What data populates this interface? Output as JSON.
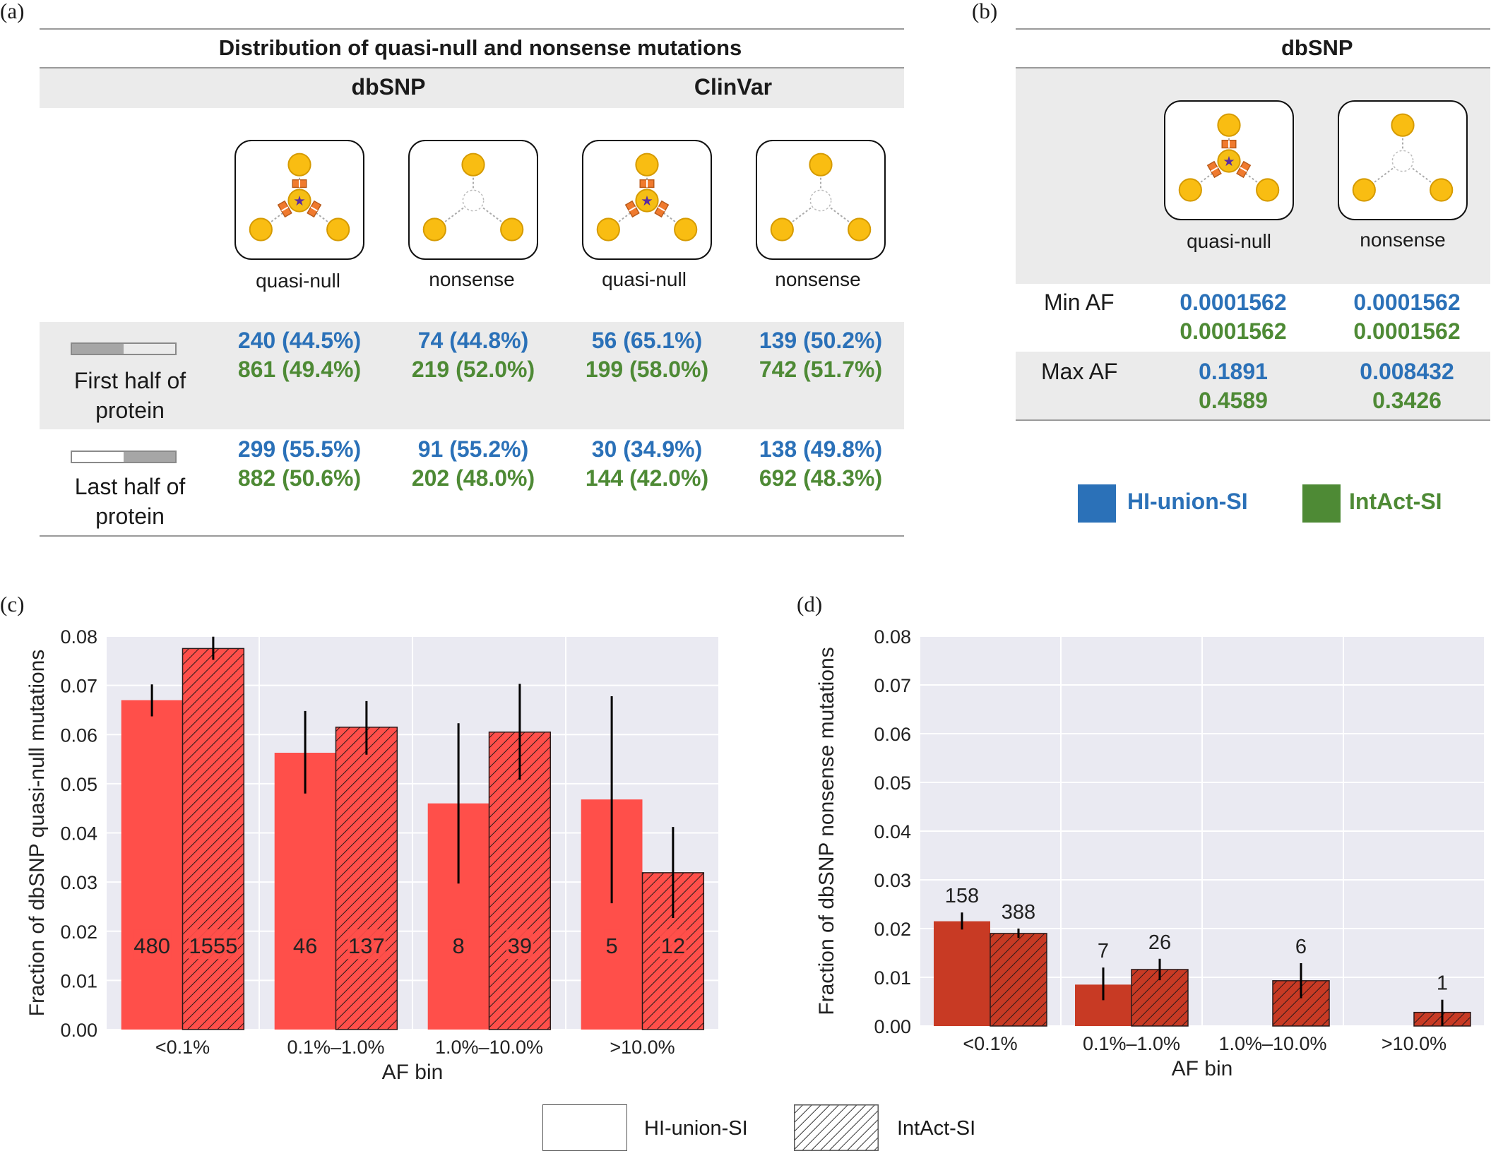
{
  "panel_labels": {
    "a": "(a)",
    "b": "(b)",
    "c": "(c)",
    "d": "(d)"
  },
  "panel_a": {
    "title": "Distribution of quasi-null and nonsense mutations",
    "groups": [
      "dbSNP",
      "ClinVar"
    ],
    "icon_labels": [
      "quasi-null",
      "nonsense",
      "quasi-null",
      "nonsense"
    ],
    "rows": [
      {
        "label_line1": "First half of",
        "label_line2": "protein",
        "blue": [
          "240 (44.5%)",
          "74 (44.8%)",
          "56 (65.1%)",
          "139 (50.2%)"
        ],
        "green": [
          "861 (49.4%)",
          "219 (52.0%)",
          "199 (58.0%)",
          "742 (51.7%)"
        ]
      },
      {
        "label_line1": "Last half of",
        "label_line2": "protein",
        "blue": [
          "299 (55.5%)",
          "91 (55.2%)",
          "30 (34.9%)",
          "138 (49.8%)"
        ],
        "green": [
          "882 (50.6%)",
          "202 (48.0%)",
          "144 (42.0%)",
          "692 (48.3%)"
        ]
      }
    ]
  },
  "panel_b": {
    "title": "dbSNP",
    "icon_labels": [
      "quasi-null",
      "nonsense"
    ],
    "rows": [
      {
        "label": "Min AF",
        "blue": [
          "0.0001562",
          "0.0001562"
        ],
        "green": [
          "0.0001562",
          "0.0001562"
        ]
      },
      {
        "label": "Max AF",
        "blue": [
          "0.1891",
          "0.008432"
        ],
        "green": [
          "0.4589",
          "0.3426"
        ]
      }
    ],
    "legend": [
      {
        "label": "HI-union-SI",
        "color": "#2b71b8"
      },
      {
        "label": "IntAct-SI",
        "color": "#4e8a35"
      }
    ]
  },
  "colors": {
    "blue": "#2b71b8",
    "green": "#4e8a35",
    "bar_c": "#ff4f4a",
    "bar_d": "#c83a24",
    "plot_bg": "#eaeaf2"
  },
  "bottom_legend": [
    {
      "label": "HI-union-SI",
      "pattern": "solid"
    },
    {
      "label": "IntAct-SI",
      "pattern": "hatched"
    }
  ],
  "chart_data": [
    {
      "type": "bar",
      "panel": "c",
      "categories": [
        "<0.1%",
        "0.1%–1.0%",
        "1.0%–10.0%",
        ">10.0%"
      ],
      "xlabel": "AF bin",
      "ylabel": "Fraction of dbSNP quasi-null mutations",
      "ylim": [
        0,
        0.08
      ],
      "yticks": [
        "0.00",
        "0.01",
        "0.02",
        "0.03",
        "0.04",
        "0.05",
        "0.06",
        "0.07",
        "0.08"
      ],
      "grid": true,
      "count_label_position": "inside",
      "series": [
        {
          "name": "HI-union-SI",
          "values": [
            0.067,
            0.0563,
            0.046,
            0.0468
          ],
          "err_low": [
            0.0637,
            0.048,
            0.0297,
            0.0257
          ],
          "err_high": [
            0.0702,
            0.0648,
            0.0623,
            0.0678
          ],
          "counts": [
            "480",
            "46",
            "8",
            "5"
          ]
        },
        {
          "name": "IntAct-SI",
          "values": [
            0.0775,
            0.0615,
            0.0605,
            0.0319
          ],
          "err_low": [
            0.0752,
            0.0559,
            0.0508,
            0.0227
          ],
          "err_high": [
            0.0799,
            0.0668,
            0.0703,
            0.0412
          ],
          "counts": [
            "1555",
            "137",
            "39",
            "12"
          ]
        }
      ]
    },
    {
      "type": "bar",
      "panel": "d",
      "categories": [
        "<0.1%",
        "0.1%–1.0%",
        "1.0%–10.0%",
        ">10.0%"
      ],
      "xlabel": "AF bin",
      "ylabel": "Fraction of dbSNP nonsense mutations",
      "ylim": [
        0,
        0.08
      ],
      "yticks": [
        "0.00",
        "0.01",
        "0.02",
        "0.03",
        "0.04",
        "0.05",
        "0.06",
        "0.07",
        "0.08"
      ],
      "grid": true,
      "count_label_position": "above",
      "series": [
        {
          "name": "HI-union-SI",
          "values": [
            0.0215,
            0.0085,
            0,
            0
          ],
          "err_low": [
            0.0198,
            0.0053,
            null,
            null
          ],
          "err_high": [
            0.0233,
            0.012,
            null,
            null
          ],
          "counts": [
            "158",
            "7",
            "",
            ""
          ]
        },
        {
          "name": "IntAct-SI",
          "values": [
            0.019,
            0.0116,
            0.0093,
            0.0028
          ],
          "err_low": [
            0.0181,
            0.0094,
            0.0057,
            0
          ],
          "err_high": [
            0.02,
            0.0138,
            0.0129,
            0.0054
          ],
          "counts": [
            "388",
            "26",
            "6",
            "1"
          ]
        }
      ]
    }
  ]
}
